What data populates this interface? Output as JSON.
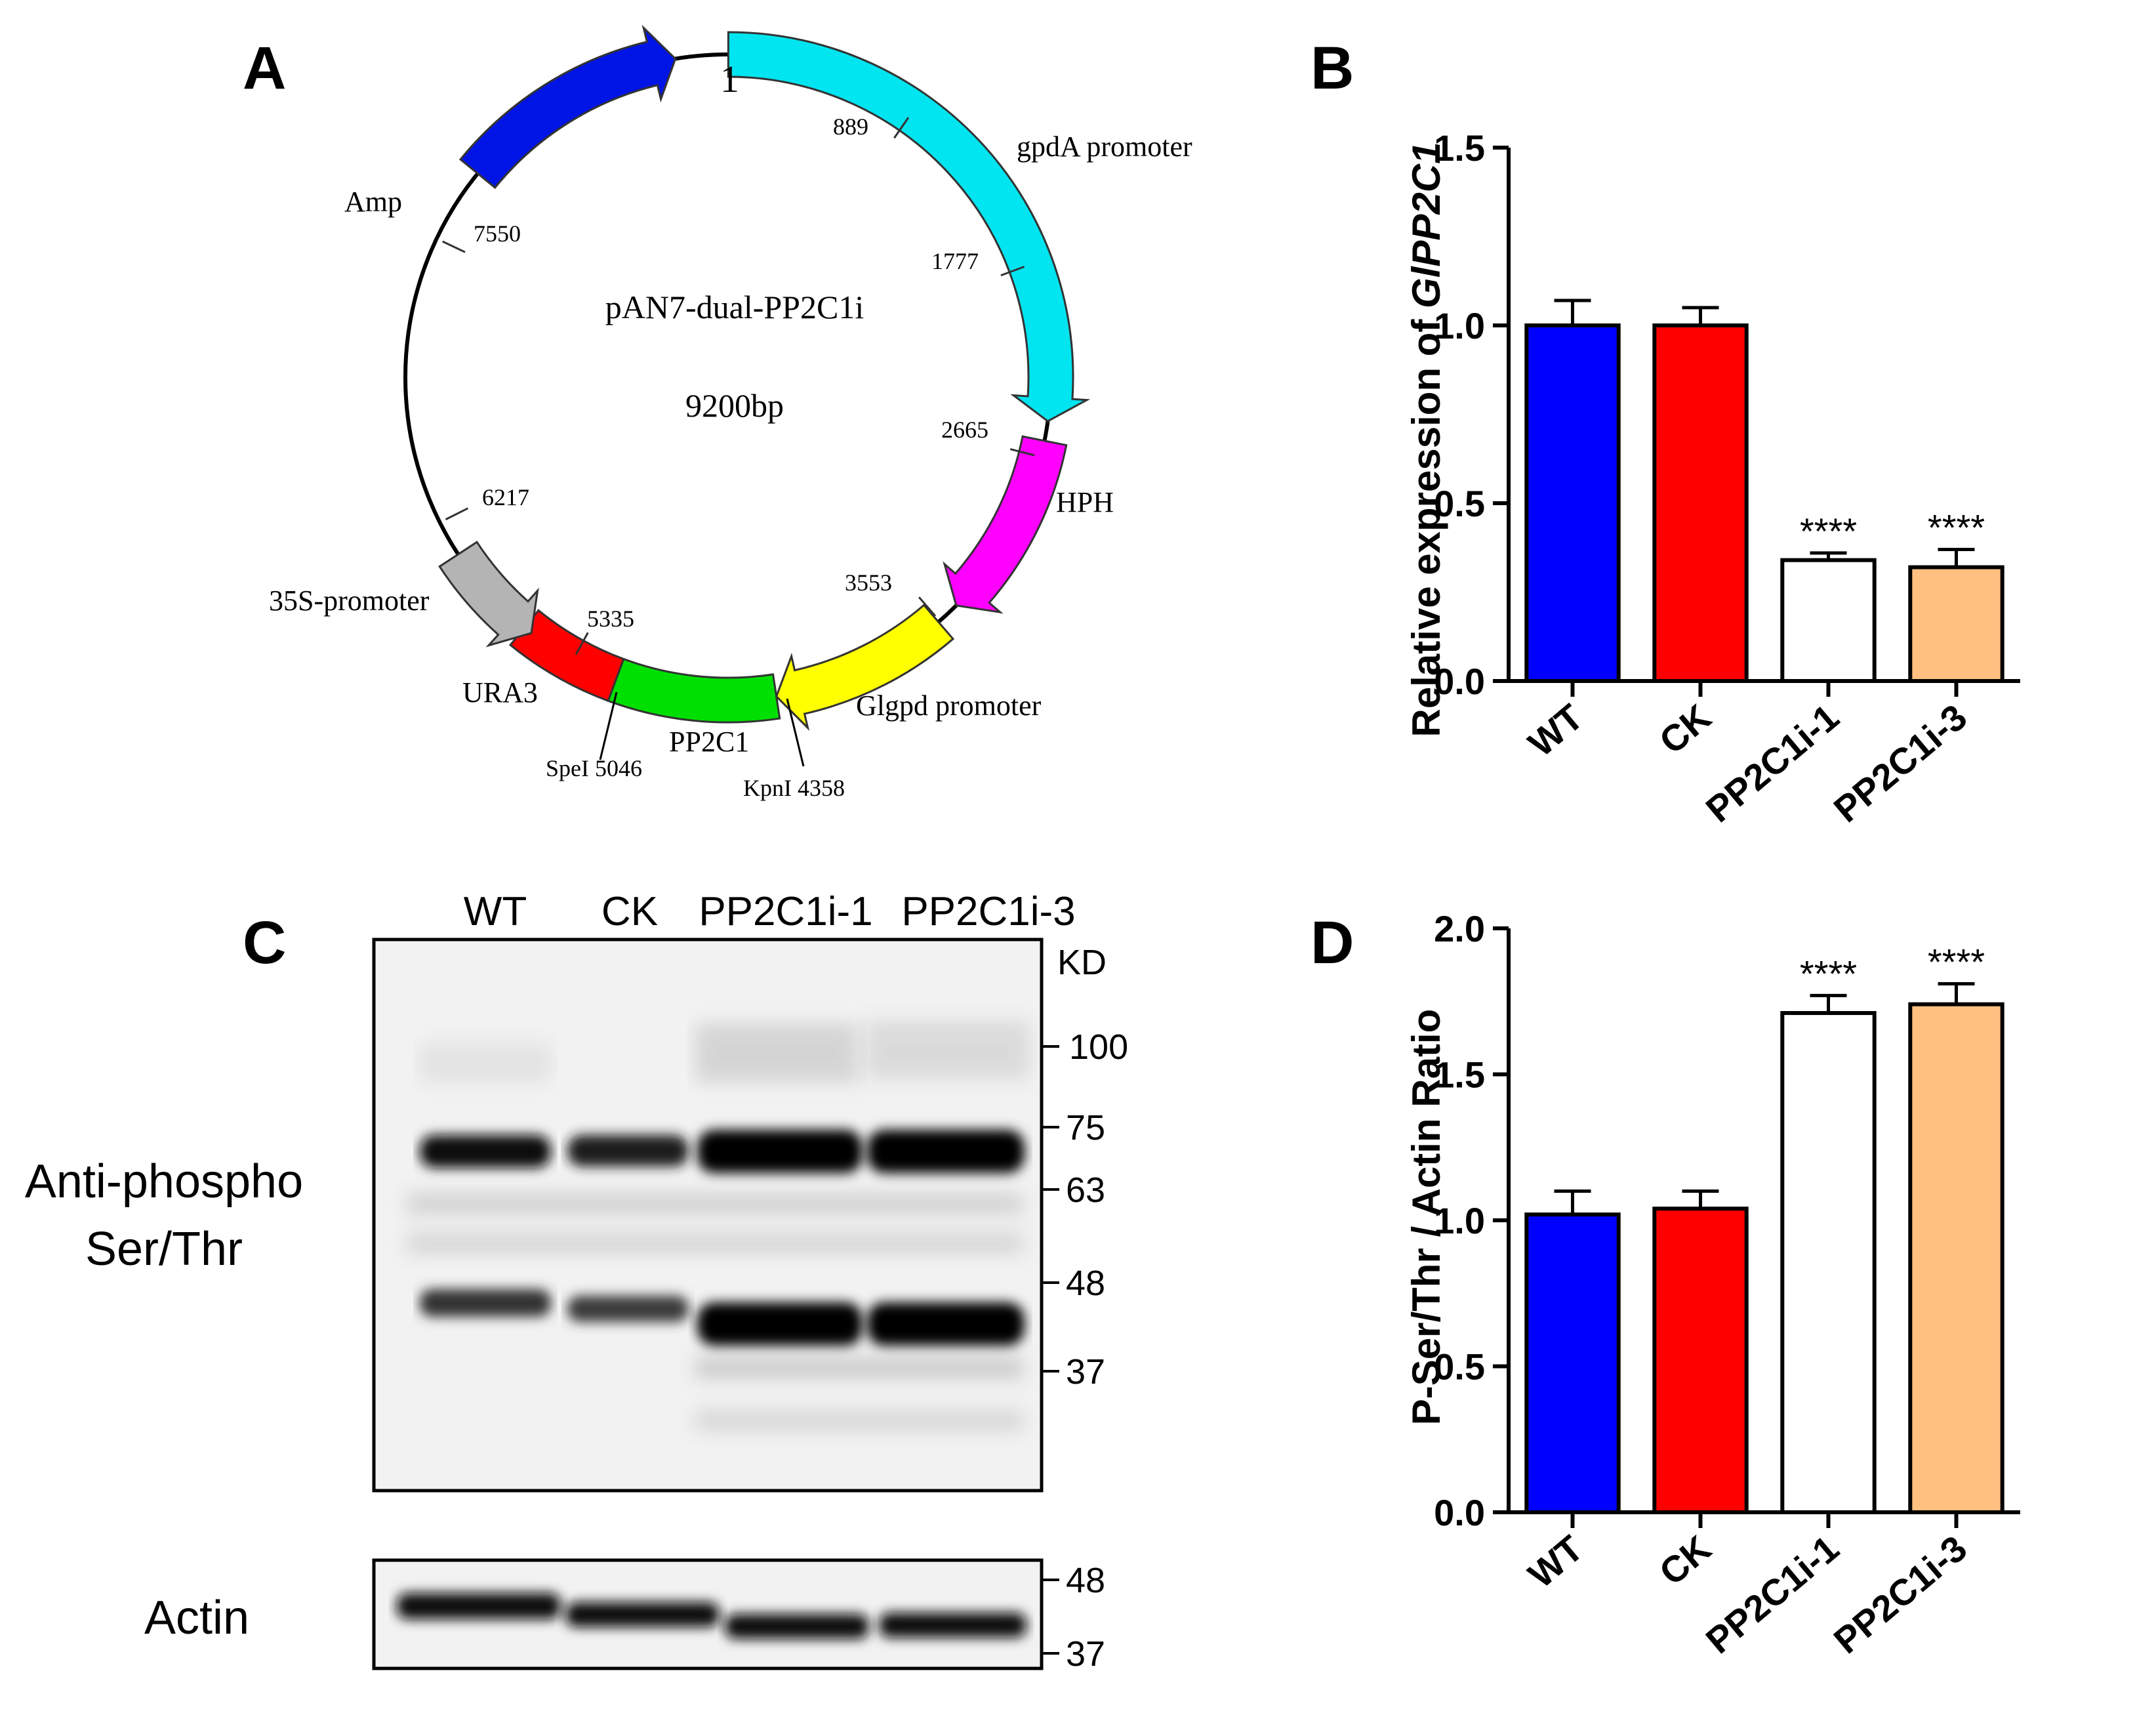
{
  "panels": {
    "a": {
      "letter": "A",
      "plasmid_name": "pAN7-dual-PP2C1i",
      "plasmid_size": "9200bp",
      "start_mark": "1",
      "features": [
        {
          "label": "gpdA promoter",
          "color": "#00E5F0"
        },
        {
          "label": "HPH",
          "color": "#FF00FF"
        },
        {
          "label": "Glgpd promoter",
          "color": "#FFFF00"
        },
        {
          "label": "PP2C1",
          "color": "#00E000"
        },
        {
          "label": "URA3",
          "color": "#FF0000"
        },
        {
          "label": "35S-promoter",
          "color": "#B4B4B4"
        },
        {
          "label": "Amp",
          "color": "#0014E6"
        }
      ],
      "positions": [
        "889",
        "1777",
        "2665",
        "3553",
        "5335",
        "6217",
        "7550"
      ],
      "sites": [
        "SpeI 5046",
        "KpnI 4358"
      ]
    },
    "b": {
      "letter": "B"
    },
    "c": {
      "letter": "C",
      "lanes": [
        "WT",
        "CK",
        "PP2C1i-1",
        "PP2C1i-3"
      ],
      "kd_label": "KD",
      "blot_label_line1": "Anti-phospho",
      "blot_label_line2": "Ser/Thr",
      "markers": [
        "100",
        "75",
        "63",
        "48",
        "37"
      ],
      "actin_label": "Actin",
      "actin_markers": [
        "48",
        "37"
      ]
    },
    "d": {
      "letter": "D"
    }
  },
  "chart_data": [
    {
      "type": "bar",
      "panel": "B",
      "categories": [
        "WT",
        "CK",
        "PP2C1i-1",
        "PP2C1i-3"
      ],
      "values": [
        1.0,
        1.0,
        0.34,
        0.32
      ],
      "errors": [
        0.07,
        0.05,
        0.02,
        0.05
      ],
      "significance": [
        "",
        "",
        "****",
        "****"
      ],
      "colors": [
        "#0000FF",
        "#FF0000",
        "#FFFFFF",
        "#FFC080"
      ],
      "ylabel_prefix": "Relative expression of ",
      "ylabel_gene": "GlPP2C1",
      "ylim": [
        0,
        1.5
      ],
      "yticks": [
        "0.0",
        "0.5",
        "1.0",
        "1.5"
      ],
      "grid": false
    },
    {
      "type": "bar",
      "panel": "D",
      "categories": [
        "WT",
        "CK",
        "PP2C1i-1",
        "PP2C1i-3"
      ],
      "values": [
        1.02,
        1.04,
        1.71,
        1.74
      ],
      "errors": [
        0.08,
        0.06,
        0.06,
        0.07
      ],
      "significance": [
        "",
        "",
        "****",
        "****"
      ],
      "colors": [
        "#0000FF",
        "#FF0000",
        "#FFFFFF",
        "#FFC080"
      ],
      "ylabel": "P-Ser/Thr / Actin Ratio",
      "ylim": [
        0,
        2.0
      ],
      "yticks": [
        "0.0",
        "0.5",
        "1.0",
        "1.5",
        "2.0"
      ],
      "grid": false
    }
  ]
}
